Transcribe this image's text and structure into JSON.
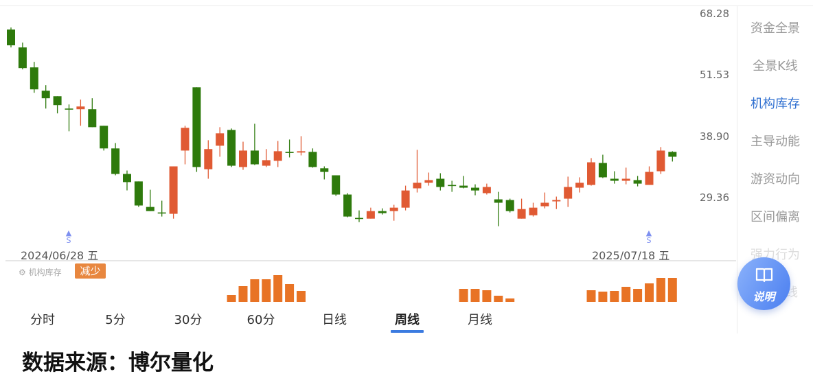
{
  "colors": {
    "up": "#e05a33",
    "down": "#2e7a0c",
    "indicator_bar": "#e87325",
    "accent": "#3b7be0",
    "marker": "#7d8ff0"
  },
  "chart_data": {
    "type": "candlestick",
    "y_scale": "log",
    "y_ticks": [
      "68.28",
      "51.53",
      "38.90",
      "29.36"
    ],
    "start_date_label": "2024/06/28 五",
    "end_date_label": "2025/07/18 五",
    "markers": [
      {
        "index": 5,
        "label": "S"
      },
      {
        "index": 55,
        "label": "S"
      }
    ],
    "ohlc": [
      [
        63.5,
        64.1,
        58.49,
        59.06
      ],
      [
        58.49,
        59.81,
        52.88,
        53.2
      ],
      [
        53.37,
        54.74,
        47.5,
        48.25
      ],
      [
        47.95,
        49.18,
        44.18,
        46.32
      ],
      [
        46.75,
        46.75,
        43.21,
        44.88
      ],
      [
        44.18,
        45.02,
        39.8,
        44.04
      ],
      [
        44.04,
        46.03,
        40.82,
        44.6
      ],
      [
        44.04,
        46.32,
        40.56,
        40.56
      ],
      [
        40.82,
        40.82,
        36.43,
        36.79
      ],
      [
        36.79,
        37.71,
        32.52,
        32.72
      ],
      [
        32.72,
        33.24,
        30.34,
        31.52
      ],
      [
        31.62,
        31.62,
        28.12,
        28.31
      ],
      [
        28.12,
        30.43,
        27.59,
        27.59
      ],
      [
        27.42,
        28.94,
        26.91,
        27.33
      ],
      [
        27.25,
        33.88,
        26.65,
        33.88
      ],
      [
        36.43,
        40.82,
        34.2,
        40.44
      ],
      [
        48.7,
        48.7,
        33.03,
        33.78
      ],
      [
        33.44,
        38.2,
        32.01,
        36.68
      ],
      [
        37.25,
        40.56,
        35.41,
        39.43
      ],
      [
        40.05,
        40.31,
        33.78,
        33.98
      ],
      [
        33.78,
        37.94,
        33.34,
        36.43
      ],
      [
        36.43,
        41.2,
        34.09,
        34.2
      ],
      [
        33.98,
        36.68,
        33.78,
        34.86
      ],
      [
        34.75,
        38.07,
        33.78,
        36.32
      ],
      [
        36.21,
        38.32,
        35.3,
        36.1
      ],
      [
        36.1,
        38.92,
        35.63,
        36.32
      ],
      [
        36.21,
        36.79,
        33.68,
        33.78
      ],
      [
        33.58,
        33.88,
        31.91,
        33.03
      ],
      [
        32.52,
        32.52,
        29.58,
        29.77
      ],
      [
        29.77,
        29.96,
        26.82,
        26.91
      ],
      [
        26.74,
        27.68,
        26.23,
        26.65
      ],
      [
        26.65,
        28.03,
        26.65,
        27.59
      ],
      [
        27.59,
        27.94,
        27.16,
        27.33
      ],
      [
        27.59,
        28.4,
        26.4,
        28.03
      ],
      [
        28.03,
        31.01,
        27.68,
        30.33
      ],
      [
        30.63,
        36.55,
        30.05,
        31.42
      ],
      [
        31.42,
        32.93,
        31.01,
        31.81
      ],
      [
        32.01,
        32.83,
        30.33,
        30.82
      ],
      [
        31.11,
        31.71,
        30.14,
        31.01
      ],
      [
        31.01,
        32.42,
        30.63,
        30.72
      ],
      [
        30.72,
        31.2,
        29.67,
        30.33
      ],
      [
        29.96,
        31.3,
        29.77,
        30.82
      ],
      [
        29.12,
        30.14,
        25.74,
        28.67
      ],
      [
        29.03,
        29.21,
        27.42,
        27.59
      ],
      [
        26.65,
        29.21,
        26.65,
        27.85
      ],
      [
        27.07,
        28.67,
        26.91,
        28.03
      ],
      [
        28.21,
        30.05,
        27.94,
        28.67
      ],
      [
        28.85,
        29.49,
        27.85,
        29.03
      ],
      [
        29.21,
        32.32,
        28.12,
        30.82
      ],
      [
        30.72,
        32.22,
        30.05,
        31.42
      ],
      [
        31.11,
        35.19,
        31.01,
        34.52
      ],
      [
        34.41,
        35.74,
        32.11,
        32.22
      ],
      [
        32.01,
        33.13,
        31.3,
        31.71
      ],
      [
        31.71,
        33.68,
        31.2,
        32.01
      ],
      [
        31.81,
        32.42,
        30.91,
        31.3
      ],
      [
        31.11,
        33.88,
        31.11,
        33.03
      ],
      [
        33.13,
        37.02,
        32.72,
        36.43
      ],
      [
        36.21,
        36.32,
        34.64,
        35.41
      ]
    ],
    "ohlc_fields": [
      "open",
      "high",
      "low",
      "close"
    ],
    "indicator": {
      "name": "机构库存",
      "status": "减少",
      "bars": [
        {
          "index": 19,
          "value": 10
        },
        {
          "index": 20,
          "value": 23
        },
        {
          "index": 21,
          "value": 33
        },
        {
          "index": 22,
          "value": 33
        },
        {
          "index": 23,
          "value": 39
        },
        {
          "index": 24,
          "value": 26
        },
        {
          "index": 25,
          "value": 16
        },
        {
          "index": 39,
          "value": 19
        },
        {
          "index": 40,
          "value": 19
        },
        {
          "index": 41,
          "value": 17
        },
        {
          "index": 42,
          "value": 9
        },
        {
          "index": 43,
          "value": 5
        },
        {
          "index": 50,
          "value": 17
        },
        {
          "index": 51,
          "value": 15
        },
        {
          "index": 52,
          "value": 16
        },
        {
          "index": 53,
          "value": 22
        },
        {
          "index": 54,
          "value": 19
        },
        {
          "index": 55,
          "value": 27
        },
        {
          "index": 56,
          "value": 35
        },
        {
          "index": 57,
          "value": 35
        }
      ]
    }
  },
  "tabs": [
    "分时",
    "5分",
    "30分",
    "60分",
    "日线",
    "周线",
    "月线"
  ],
  "active_tab": "周线",
  "side_menu": [
    "资金全景",
    "全景K线",
    "机构库存",
    "主导动能",
    "游资动向",
    "区间偏离",
    "强力行为",
    "线"
  ],
  "active_side_item": "机构库存",
  "help_button": {
    "label": "说明",
    "icon": "book-icon"
  },
  "indicator_icon": "gear-icon",
  "source": "数据来源：博尔量化"
}
